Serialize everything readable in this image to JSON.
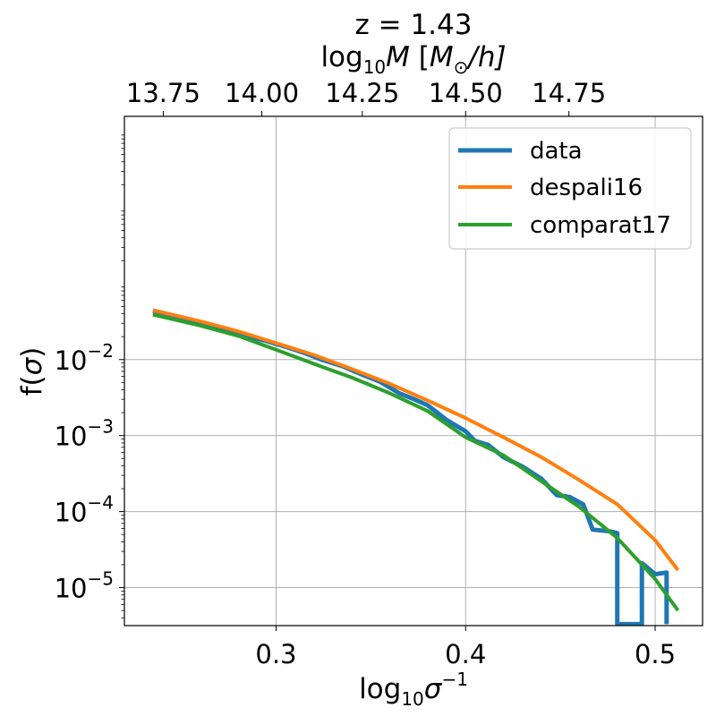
{
  "chart_data": {
    "type": "line",
    "title": "z = 1.43",
    "xlabel": {
      "base": "log",
      "sub": "10",
      "main": "σ",
      "sup": "−1"
    },
    "ylabel": {
      "pre": "f(",
      "main": "σ",
      "post": ")"
    },
    "top_xlabel": {
      "base": "log",
      "sub": "10",
      "main": "M",
      "unit_open": " [",
      "unit_main": "M",
      "unit_sub": "⊙",
      "unit_rest": "/h]"
    },
    "xlim": [
      0.22,
      0.525
    ],
    "ylim_log10": [
      -5.5,
      1.2
    ],
    "y_scale": "log",
    "grid": true,
    "legend_position": "top-right",
    "x_ticks": [
      {
        "value": 0.3,
        "label": "0.3"
      },
      {
        "value": 0.4,
        "label": "0.4"
      },
      {
        "value": 0.5,
        "label": "0.5"
      }
    ],
    "y_ticks": [
      {
        "value": 0.01,
        "base": "10",
        "exp": "−2"
      },
      {
        "value": 0.001,
        "base": "10",
        "exp": "−3"
      },
      {
        "value": 0.0001,
        "base": "10",
        "exp": "−4"
      },
      {
        "value": 1e-05,
        "base": "10",
        "exp": "−5"
      }
    ],
    "top_ticks": [
      {
        "value": 0.2405,
        "label": "13.75"
      },
      {
        "value": 0.2925,
        "label": "14.00"
      },
      {
        "value": 0.3455,
        "label": "14.25"
      },
      {
        "value": 0.4,
        "label": "14.50"
      },
      {
        "value": 0.4545,
        "label": "14.75"
      }
    ],
    "series": [
      {
        "name": "data",
        "color": "#1f77b4",
        "points": [
          [
            0.235,
            0.044
          ],
          [
            0.25,
            0.036
          ],
          [
            0.265,
            0.028
          ],
          [
            0.28,
            0.022
          ],
          [
            0.295,
            0.0175
          ],
          [
            0.305,
            0.0148
          ],
          [
            0.315,
            0.0122
          ],
          [
            0.325,
            0.0098
          ],
          [
            0.335,
            0.0082
          ],
          [
            0.345,
            0.0064
          ],
          [
            0.355,
            0.0051
          ],
          [
            0.365,
            0.0036
          ],
          [
            0.373,
            0.003
          ],
          [
            0.38,
            0.0025
          ],
          [
            0.39,
            0.0016
          ],
          [
            0.4,
            0.00114
          ],
          [
            0.405,
            0.00085
          ],
          [
            0.412,
            0.00075
          ],
          [
            0.42,
            0.00052
          ],
          [
            0.43,
            0.00039
          ],
          [
            0.44,
            0.00027
          ],
          [
            0.448,
            0.000165
          ],
          [
            0.455,
            0.000155
          ],
          [
            0.462,
            0.000125
          ],
          [
            0.467,
            5.8e-05
          ],
          [
            0.476,
            5.5e-05
          ],
          [
            0.48,
            5.2e-05
          ],
          [
            0.48,
            3.3e-06
          ],
          [
            0.493,
            3.3e-06
          ],
          [
            0.493,
            2.1e-05
          ],
          [
            0.5,
            1.5e-05
          ],
          [
            0.506,
            1.58e-05
          ],
          [
            0.506,
            3.3e-06
          ]
        ]
      },
      {
        "name": "despali16",
        "color": "#ff7f0e",
        "points": [
          [
            0.235,
            0.0445
          ],
          [
            0.26,
            0.032
          ],
          [
            0.28,
            0.0235
          ],
          [
            0.3,
            0.0165
          ],
          [
            0.32,
            0.0115
          ],
          [
            0.34,
            0.0075
          ],
          [
            0.36,
            0.0048
          ],
          [
            0.38,
            0.0029
          ],
          [
            0.4,
            0.0017
          ],
          [
            0.42,
            0.00095
          ],
          [
            0.44,
            0.00052
          ],
          [
            0.46,
            0.00026
          ],
          [
            0.48,
            0.000125
          ],
          [
            0.5,
            4.2e-05
          ],
          [
            0.512,
            1.7e-05
          ]
        ]
      },
      {
        "name": "comparat17",
        "color": "#2ca02c",
        "points": [
          [
            0.235,
            0.039
          ],
          [
            0.26,
            0.028
          ],
          [
            0.28,
            0.0205
          ],
          [
            0.3,
            0.0135
          ],
          [
            0.32,
            0.0088
          ],
          [
            0.34,
            0.0058
          ],
          [
            0.36,
            0.0036
          ],
          [
            0.38,
            0.0021
          ],
          [
            0.4,
            0.00095
          ],
          [
            0.42,
            0.00055
          ],
          [
            0.44,
            0.00025
          ],
          [
            0.46,
            0.000115
          ],
          [
            0.48,
            4.5e-05
          ],
          [
            0.5,
            1.3e-05
          ],
          [
            0.512,
            5e-06
          ]
        ]
      }
    ]
  }
}
